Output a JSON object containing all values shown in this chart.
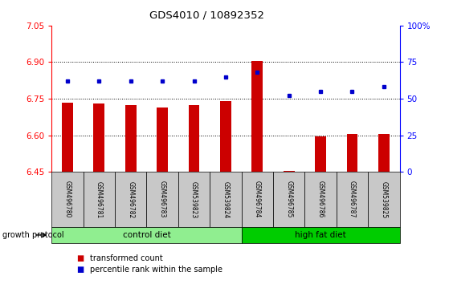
{
  "title": "GDS4010 / 10892352",
  "samples": [
    "GSM496780",
    "GSM496781",
    "GSM496782",
    "GSM496783",
    "GSM539823",
    "GSM539824",
    "GSM496784",
    "GSM496785",
    "GSM496786",
    "GSM496787",
    "GSM539825"
  ],
  "red_values": [
    6.735,
    6.73,
    6.725,
    6.715,
    6.725,
    6.74,
    6.905,
    6.455,
    6.595,
    6.605,
    6.605
  ],
  "blue_values": [
    62,
    62,
    62,
    62,
    62,
    65,
    68,
    52,
    55,
    55,
    58
  ],
  "ylim_left": [
    6.45,
    7.05
  ],
  "ylim_right": [
    0,
    100
  ],
  "yticks_left": [
    6.45,
    6.6,
    6.75,
    6.9,
    7.05
  ],
  "yticks_right": [
    0,
    25,
    50,
    75,
    100
  ],
  "ytick_labels_right": [
    "0",
    "25",
    "50",
    "75",
    "100%"
  ],
  "hlines": [
    6.6,
    6.75,
    6.9
  ],
  "control_diet_count": 6,
  "high_fat_diet_count": 5,
  "group_labels": [
    "control diet",
    "high fat diet"
  ],
  "group_label_y": "growth protocol",
  "bar_color": "#CC0000",
  "dot_color": "#0000CC",
  "control_diet_color": "#90EE90",
  "high_fat_diet_color": "#00CC00",
  "label_bg_color": "#C8C8C8",
  "legend_red_label": "transformed count",
  "legend_blue_label": "percentile rank within the sample",
  "bar_width": 0.35,
  "base_value": 6.45
}
